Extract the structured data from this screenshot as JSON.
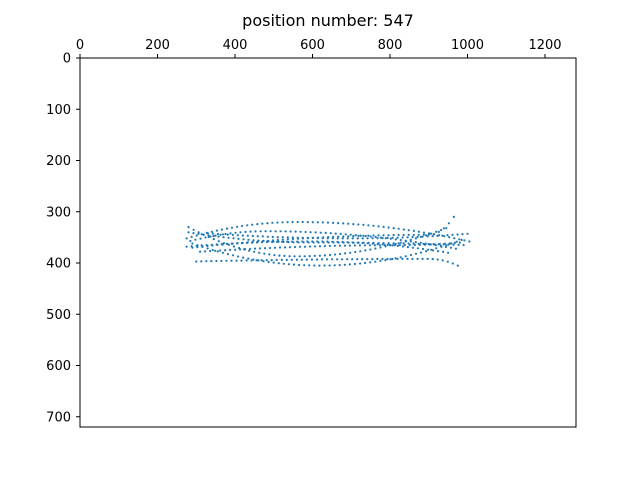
{
  "chart_data": {
    "type": "scatter",
    "title": "position number: 547",
    "xlabel": "",
    "ylabel": "",
    "xlim": [
      0,
      1280
    ],
    "ylim": [
      720,
      0
    ],
    "x_axis_position": "top",
    "y_axis_inverted": true,
    "grid": false,
    "legend": "none",
    "x_ticks": [
      0,
      200,
      400,
      600,
      800,
      1000,
      1200
    ],
    "y_ticks": [
      0,
      100,
      200,
      300,
      400,
      500,
      600,
      700
    ],
    "x_tick_labels": [
      "0",
      "200",
      "400",
      "600",
      "800",
      "1000",
      "1200"
    ],
    "y_tick_labels": [
      "0",
      "100",
      "200",
      "300",
      "400",
      "500",
      "600",
      "700"
    ],
    "marker_color": "#1f77b4",
    "series": [
      {
        "curves": [
          {
            "x_range": [
              275,
              1005
            ],
            "y_start": 352,
            "y_mid": 320,
            "y_end": 358,
            "peak_x": 560
          },
          {
            "x_range": [
              290,
              965
            ],
            "y_start": 370,
            "y_mid": 345,
            "y_end": 310,
            "peak_x": 900
          },
          {
            "x_range": [
              280,
              990
            ],
            "y_start": 340,
            "y_mid": 360,
            "y_end": 365,
            "peak_x": 600
          },
          {
            "x_range": [
              285,
              970
            ],
            "y_start": 357,
            "y_mid": 338,
            "y_end": 372,
            "peak_x": 480
          },
          {
            "x_range": [
              300,
              975
            ],
            "y_start": 397,
            "y_mid": 392,
            "y_end": 405,
            "peak_x": 900
          },
          {
            "x_range": [
              290,
              985
            ],
            "y_start": 362,
            "y_mid": 405,
            "y_end": 355,
            "peak_x": 620
          },
          {
            "x_range": [
              280,
              945
            ],
            "y_start": 330,
            "y_mid": 387,
            "y_end": 332,
            "peak_x": 560
          },
          {
            "x_range": [
              330,
              1000
            ],
            "y_start": 342,
            "y_mid": 352,
            "y_end": 343,
            "peak_x": 700
          },
          {
            "x_range": [
              275,
              950
            ],
            "y_start": 368,
            "y_mid": 358,
            "y_end": 380,
            "peak_x": 600
          },
          {
            "x_range": [
              310,
              980
            ],
            "y_start": 378,
            "y_mid": 365,
            "y_end": 360,
            "peak_x": 840
          }
        ]
      }
    ]
  }
}
